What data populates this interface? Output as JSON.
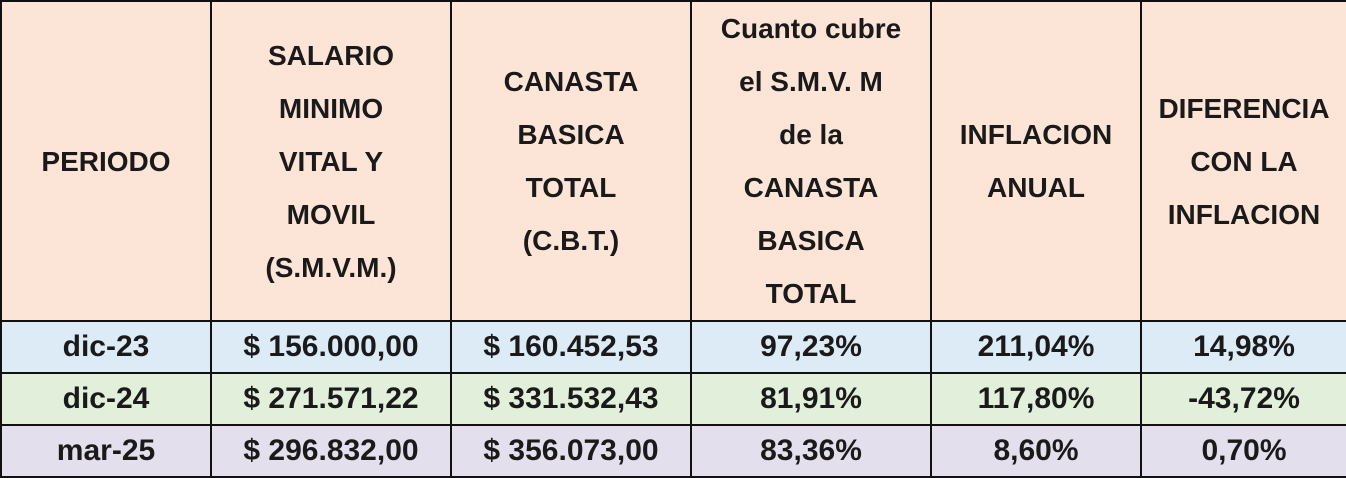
{
  "table": {
    "header": [
      [
        "PERIODO"
      ],
      [
        "SALARIO",
        "MINIMO",
        "VITAL Y",
        "MOVIL",
        "(S.M.V.M.)"
      ],
      [
        "CANASTA",
        "BASICA",
        "TOTAL",
        "(C.B.T.)"
      ],
      [
        "Cuanto cubre",
        "el S.M.V. M",
        "de la",
        "CANASTA",
        "BASICA",
        "TOTAL"
      ],
      [
        "INFLACION",
        "ANUAL"
      ],
      [
        "DIFERENCIA",
        "CON LA",
        "INFLACION"
      ]
    ],
    "rows": [
      [
        "dic-23",
        "$ 156.000,00",
        "$ 160.452,53",
        "97,23%",
        "211,04%",
        "14,98%"
      ],
      [
        "dic-24",
        "$ 271.571,22",
        "$ 331.532,43",
        "81,91%",
        "117,80%",
        "-43,72%"
      ],
      [
        "mar-25",
        "$ 296.832,00",
        "$ 356.073,00",
        "83,36%",
        "8,60%",
        "0,70%"
      ]
    ]
  }
}
